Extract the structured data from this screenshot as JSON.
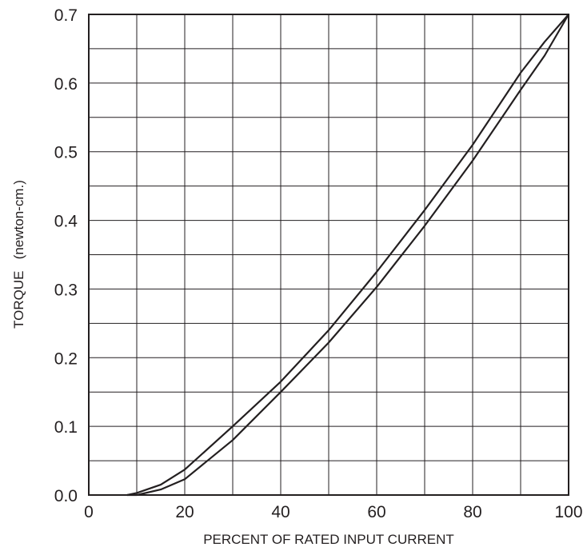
{
  "chart_data": {
    "type": "line",
    "xlabel": "PERCENT OF RATED INPUT CURRENT",
    "ylabel": "TORQUE   (newton-cm.)",
    "xlim": [
      0,
      100
    ],
    "ylim": [
      0,
      0.7
    ],
    "x_ticks": [
      "0",
      "20",
      "40",
      "60",
      "80",
      "100"
    ],
    "y_ticks": [
      "0.0",
      "0.1",
      "0.2",
      "0.3",
      "0.4",
      "0.5",
      "0.6",
      "0.7"
    ],
    "grid": {
      "x_step": 10,
      "y_step": 0.05
    },
    "line_color": "#231f20",
    "series": [
      {
        "x": [
          8,
          10,
          15,
          20,
          30,
          40,
          50,
          60,
          70,
          80,
          90,
          95,
          100
        ],
        "y": [
          0.0,
          0.003,
          0.015,
          0.037,
          0.1,
          0.165,
          0.24,
          0.325,
          0.415,
          0.51,
          0.615,
          0.66,
          0.7
        ]
      },
      {
        "x": [
          8,
          10,
          15,
          20,
          30,
          40,
          50,
          60,
          70,
          80,
          90,
          95,
          100
        ],
        "y": [
          0.0,
          0.0,
          0.008,
          0.023,
          0.08,
          0.15,
          0.222,
          0.303,
          0.392,
          0.487,
          0.59,
          0.64,
          0.7
        ]
      }
    ]
  }
}
